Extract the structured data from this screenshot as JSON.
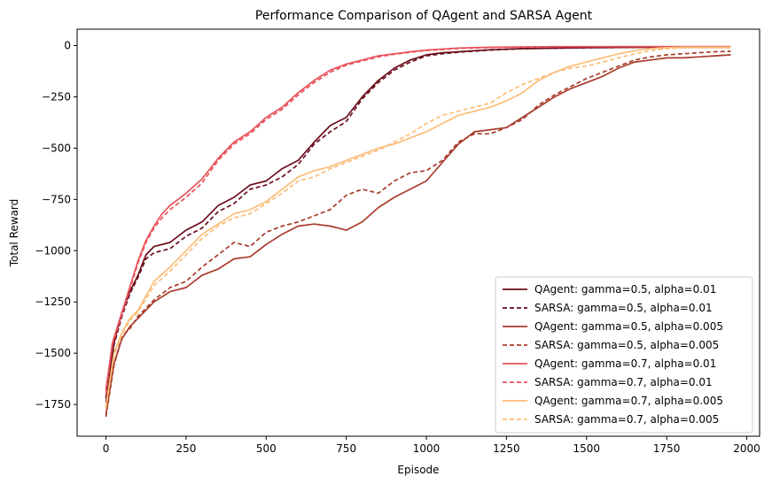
{
  "chart_data": {
    "type": "line",
    "title": "Performance Comparison of QAgent and SARSA Agent",
    "xlabel": "Episode",
    "ylabel": "Total Reward",
    "xlim": [
      -90,
      2040
    ],
    "ylim": [
      -1905,
      80
    ],
    "xticks": [
      0,
      250,
      500,
      750,
      1000,
      1250,
      1500,
      1750,
      2000
    ],
    "yticks": [
      0,
      -250,
      -500,
      -750,
      -1000,
      -1250,
      -1500,
      -1750
    ],
    "xtick_labels": [
      "0",
      "250",
      "500",
      "750",
      "1000",
      "1250",
      "1500",
      "1750",
      "2000"
    ],
    "ytick_labels": [
      "0",
      "−250",
      "−500",
      "−750",
      "−1000",
      "−1250",
      "−1500",
      "−1750"
    ],
    "grid": false,
    "legend_position": "lower-right",
    "series": [
      {
        "name": "QAgent: gamma=0.5, alpha=0.01",
        "color": "#6b0d1c",
        "dash": "solid",
        "points": [
          [
            0,
            -1720
          ],
          [
            25,
            -1450
          ],
          [
            50,
            -1300
          ],
          [
            75,
            -1200
          ],
          [
            100,
            -1120
          ],
          [
            125,
            -1020
          ],
          [
            150,
            -980
          ],
          [
            200,
            -960
          ],
          [
            250,
            -900
          ],
          [
            300,
            -860
          ],
          [
            350,
            -780
          ],
          [
            400,
            -740
          ],
          [
            450,
            -680
          ],
          [
            500,
            -660
          ],
          [
            550,
            -600
          ],
          [
            600,
            -560
          ],
          [
            650,
            -470
          ],
          [
            700,
            -390
          ],
          [
            750,
            -350
          ],
          [
            800,
            -250
          ],
          [
            850,
            -170
          ],
          [
            900,
            -110
          ],
          [
            950,
            -70
          ],
          [
            1000,
            -45
          ],
          [
            1050,
            -35
          ],
          [
            1100,
            -30
          ],
          [
            1200,
            -20
          ],
          [
            1300,
            -15
          ],
          [
            1500,
            -10
          ],
          [
            1700,
            -8
          ],
          [
            1950,
            -8
          ]
        ]
      },
      {
        "name": "SARSA:  gamma=0.5, alpha=0.01",
        "color": "#6b0d1c",
        "dash": "dashed",
        "points": [
          [
            0,
            -1740
          ],
          [
            25,
            -1460
          ],
          [
            50,
            -1320
          ],
          [
            75,
            -1210
          ],
          [
            100,
            -1130
          ],
          [
            125,
            -1040
          ],
          [
            150,
            -1010
          ],
          [
            200,
            -990
          ],
          [
            250,
            -930
          ],
          [
            300,
            -890
          ],
          [
            350,
            -810
          ],
          [
            400,
            -770
          ],
          [
            450,
            -700
          ],
          [
            500,
            -680
          ],
          [
            550,
            -640
          ],
          [
            600,
            -580
          ],
          [
            650,
            -480
          ],
          [
            700,
            -420
          ],
          [
            750,
            -370
          ],
          [
            800,
            -260
          ],
          [
            850,
            -180
          ],
          [
            900,
            -120
          ],
          [
            950,
            -80
          ],
          [
            1000,
            -50
          ],
          [
            1050,
            -40
          ],
          [
            1100,
            -32
          ],
          [
            1200,
            -22
          ],
          [
            1300,
            -15
          ],
          [
            1500,
            -10
          ],
          [
            1700,
            -8
          ],
          [
            1950,
            -8
          ]
        ]
      },
      {
        "name": "QAgent: gamma=0.5, alpha=0.005",
        "color": "#a83c2c",
        "dash": "solid",
        "points": [
          [
            0,
            -1800
          ],
          [
            25,
            -1550
          ],
          [
            50,
            -1430
          ],
          [
            75,
            -1370
          ],
          [
            100,
            -1330
          ],
          [
            150,
            -1250
          ],
          [
            200,
            -1200
          ],
          [
            250,
            -1180
          ],
          [
            300,
            -1120
          ],
          [
            350,
            -1090
          ],
          [
            400,
            -1040
          ],
          [
            450,
            -1030
          ],
          [
            500,
            -970
          ],
          [
            550,
            -920
          ],
          [
            600,
            -880
          ],
          [
            650,
            -870
          ],
          [
            700,
            -880
          ],
          [
            750,
            -900
          ],
          [
            800,
            -860
          ],
          [
            850,
            -790
          ],
          [
            900,
            -740
          ],
          [
            950,
            -700
          ],
          [
            1000,
            -660
          ],
          [
            1050,
            -570
          ],
          [
            1100,
            -480
          ],
          [
            1150,
            -420
          ],
          [
            1200,
            -410
          ],
          [
            1250,
            -400
          ],
          [
            1300,
            -350
          ],
          [
            1350,
            -300
          ],
          [
            1400,
            -250
          ],
          [
            1450,
            -210
          ],
          [
            1500,
            -180
          ],
          [
            1550,
            -150
          ],
          [
            1600,
            -110
          ],
          [
            1650,
            -80
          ],
          [
            1700,
            -70
          ],
          [
            1750,
            -60
          ],
          [
            1800,
            -60
          ],
          [
            1850,
            -55
          ],
          [
            1900,
            -50
          ],
          [
            1950,
            -45
          ]
        ]
      },
      {
        "name": "SARSA:  gamma=0.5, alpha=0.005",
        "color": "#a83c2c",
        "dash": "dashed",
        "points": [
          [
            0,
            -1810
          ],
          [
            25,
            -1560
          ],
          [
            50,
            -1420
          ],
          [
            75,
            -1380
          ],
          [
            100,
            -1320
          ],
          [
            150,
            -1240
          ],
          [
            200,
            -1180
          ],
          [
            250,
            -1150
          ],
          [
            300,
            -1080
          ],
          [
            350,
            -1020
          ],
          [
            400,
            -960
          ],
          [
            450,
            -980
          ],
          [
            500,
            -910
          ],
          [
            550,
            -880
          ],
          [
            600,
            -860
          ],
          [
            650,
            -830
          ],
          [
            700,
            -800
          ],
          [
            750,
            -730
          ],
          [
            800,
            -700
          ],
          [
            850,
            -720
          ],
          [
            900,
            -660
          ],
          [
            950,
            -620
          ],
          [
            1000,
            -610
          ],
          [
            1050,
            -560
          ],
          [
            1100,
            -470
          ],
          [
            1150,
            -430
          ],
          [
            1200,
            -430
          ],
          [
            1250,
            -400
          ],
          [
            1300,
            -360
          ],
          [
            1350,
            -290
          ],
          [
            1400,
            -240
          ],
          [
            1450,
            -200
          ],
          [
            1500,
            -160
          ],
          [
            1550,
            -130
          ],
          [
            1600,
            -100
          ],
          [
            1650,
            -70
          ],
          [
            1700,
            -55
          ],
          [
            1750,
            -45
          ],
          [
            1800,
            -40
          ],
          [
            1850,
            -35
          ],
          [
            1900,
            -30
          ],
          [
            1950,
            -28
          ]
        ]
      },
      {
        "name": "QAgent: gamma=0.7, alpha=0.01",
        "color": "#e8525a",
        "dash": "solid",
        "points": [
          [
            0,
            -1680
          ],
          [
            20,
            -1450
          ],
          [
            40,
            -1350
          ],
          [
            60,
            -1250
          ],
          [
            80,
            -1150
          ],
          [
            100,
            -1050
          ],
          [
            125,
            -950
          ],
          [
            150,
            -880
          ],
          [
            175,
            -820
          ],
          [
            200,
            -780
          ],
          [
            250,
            -720
          ],
          [
            300,
            -650
          ],
          [
            350,
            -550
          ],
          [
            400,
            -470
          ],
          [
            450,
            -420
          ],
          [
            500,
            -350
          ],
          [
            550,
            -300
          ],
          [
            600,
            -230
          ],
          [
            650,
            -170
          ],
          [
            700,
            -120
          ],
          [
            750,
            -90
          ],
          [
            800,
            -70
          ],
          [
            850,
            -50
          ],
          [
            900,
            -40
          ],
          [
            950,
            -30
          ],
          [
            1000,
            -22
          ],
          [
            1100,
            -12
          ],
          [
            1200,
            -8
          ],
          [
            1400,
            -5
          ],
          [
            1700,
            -5
          ],
          [
            1950,
            -5
          ]
        ]
      },
      {
        "name": "SARSA:  gamma=0.7, alpha=0.01",
        "color": "#e8525a",
        "dash": "dashed",
        "points": [
          [
            0,
            -1700
          ],
          [
            20,
            -1460
          ],
          [
            40,
            -1360
          ],
          [
            60,
            -1260
          ],
          [
            80,
            -1160
          ],
          [
            100,
            -1060
          ],
          [
            125,
            -960
          ],
          [
            150,
            -890
          ],
          [
            175,
            -840
          ],
          [
            200,
            -800
          ],
          [
            250,
            -740
          ],
          [
            300,
            -670
          ],
          [
            350,
            -560
          ],
          [
            400,
            -480
          ],
          [
            450,
            -430
          ],
          [
            500,
            -360
          ],
          [
            550,
            -310
          ],
          [
            600,
            -240
          ],
          [
            650,
            -180
          ],
          [
            700,
            -130
          ],
          [
            750,
            -95
          ],
          [
            800,
            -75
          ],
          [
            850,
            -55
          ],
          [
            900,
            -42
          ],
          [
            950,
            -32
          ],
          [
            1000,
            -24
          ],
          [
            1100,
            -14
          ],
          [
            1200,
            -9
          ],
          [
            1400,
            -6
          ],
          [
            1700,
            -5
          ],
          [
            1950,
            -5
          ]
        ]
      },
      {
        "name": "QAgent: gamma=0.7, alpha=0.005",
        "color": "#fbbd78",
        "dash": "solid",
        "points": [
          [
            0,
            -1760
          ],
          [
            25,
            -1500
          ],
          [
            50,
            -1400
          ],
          [
            75,
            -1330
          ],
          [
            100,
            -1290
          ],
          [
            150,
            -1150
          ],
          [
            200,
            -1080
          ],
          [
            250,
            -1000
          ],
          [
            300,
            -920
          ],
          [
            350,
            -870
          ],
          [
            400,
            -820
          ],
          [
            450,
            -800
          ],
          [
            500,
            -760
          ],
          [
            550,
            -700
          ],
          [
            600,
            -640
          ],
          [
            650,
            -610
          ],
          [
            700,
            -590
          ],
          [
            750,
            -560
          ],
          [
            800,
            -530
          ],
          [
            850,
            -500
          ],
          [
            900,
            -480
          ],
          [
            950,
            -450
          ],
          [
            1000,
            -420
          ],
          [
            1050,
            -380
          ],
          [
            1100,
            -340
          ],
          [
            1150,
            -320
          ],
          [
            1200,
            -300
          ],
          [
            1250,
            -270
          ],
          [
            1300,
            -230
          ],
          [
            1350,
            -170
          ],
          [
            1400,
            -130
          ],
          [
            1450,
            -100
          ],
          [
            1500,
            -80
          ],
          [
            1550,
            -60
          ],
          [
            1600,
            -40
          ],
          [
            1650,
            -25
          ],
          [
            1700,
            -15
          ],
          [
            1750,
            -10
          ],
          [
            1800,
            -8
          ],
          [
            1950,
            -8
          ]
        ]
      },
      {
        "name": "SARSA:  gamma=0.7, alpha=0.005",
        "color": "#fbbd78",
        "dash": "dashed",
        "points": [
          [
            0,
            -1770
          ],
          [
            25,
            -1510
          ],
          [
            50,
            -1410
          ],
          [
            75,
            -1340
          ],
          [
            100,
            -1300
          ],
          [
            150,
            -1170
          ],
          [
            200,
            -1100
          ],
          [
            250,
            -1020
          ],
          [
            300,
            -940
          ],
          [
            350,
            -880
          ],
          [
            400,
            -840
          ],
          [
            450,
            -820
          ],
          [
            500,
            -770
          ],
          [
            550,
            -720
          ],
          [
            600,
            -660
          ],
          [
            650,
            -640
          ],
          [
            700,
            -600
          ],
          [
            750,
            -570
          ],
          [
            800,
            -540
          ],
          [
            850,
            -510
          ],
          [
            900,
            -470
          ],
          [
            950,
            -430
          ],
          [
            1000,
            -380
          ],
          [
            1050,
            -340
          ],
          [
            1100,
            -320
          ],
          [
            1150,
            -300
          ],
          [
            1200,
            -280
          ],
          [
            1250,
            -230
          ],
          [
            1300,
            -190
          ],
          [
            1350,
            -160
          ],
          [
            1400,
            -130
          ],
          [
            1450,
            -110
          ],
          [
            1500,
            -100
          ],
          [
            1550,
            -80
          ],
          [
            1600,
            -60
          ],
          [
            1650,
            -40
          ],
          [
            1700,
            -25
          ],
          [
            1750,
            -15
          ],
          [
            1800,
            -10
          ],
          [
            1950,
            -10
          ]
        ]
      }
    ]
  }
}
